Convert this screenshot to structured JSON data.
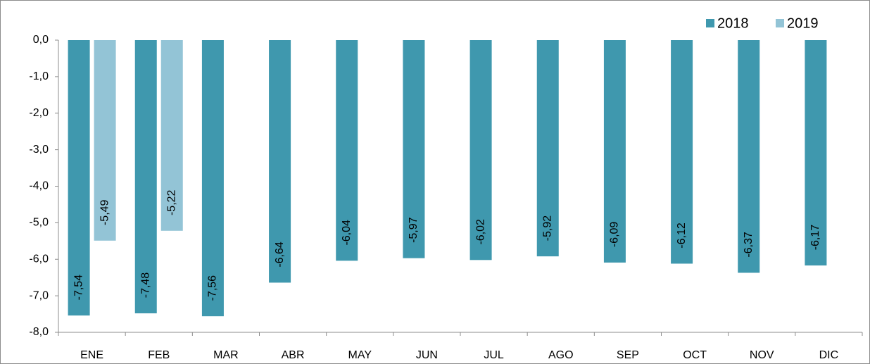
{
  "chart_data": {
    "type": "bar",
    "categories": [
      "ENE",
      "FEB",
      "MAR",
      "ABR",
      "MAY",
      "JUN",
      "JUL",
      "AGO",
      "SEP",
      "OCT",
      "NOV",
      "DIC"
    ],
    "series": [
      {
        "name": "2018",
        "color": "#3f98ae",
        "values": [
          -7.54,
          -7.48,
          -7.56,
          -6.64,
          -6.04,
          -5.97,
          -6.02,
          -5.92,
          -6.09,
          -6.12,
          -6.37,
          -6.17
        ],
        "value_labels": [
          "-7,54",
          "-7,48",
          "-7,56",
          "-6,64",
          "-6,04",
          "-5,97",
          "-6,02",
          "-5,92",
          "-6,09",
          "-6,12",
          "-6,37",
          "-6,17"
        ]
      },
      {
        "name": "2019",
        "color": "#93c4d6",
        "values": [
          -5.49,
          -5.22,
          null,
          null,
          null,
          null,
          null,
          null,
          null,
          null,
          null,
          null
        ],
        "value_labels": [
          "-5,49",
          "-5,22",
          null,
          null,
          null,
          null,
          null,
          null,
          null,
          null,
          null,
          null
        ]
      }
    ],
    "ylim": [
      -8,
      0
    ],
    "yticks": [
      {
        "value": 0,
        "label": "0,0"
      },
      {
        "value": -1,
        "label": "-1,0"
      },
      {
        "value": -2,
        "label": "-2,0"
      },
      {
        "value": -3,
        "label": "-3,0"
      },
      {
        "value": -4,
        "label": "-4,0"
      },
      {
        "value": -5,
        "label": "-5,0"
      },
      {
        "value": -6,
        "label": "-6,0"
      },
      {
        "value": -7,
        "label": "-7,0"
      },
      {
        "value": -8,
        "label": "-8,0"
      }
    ],
    "legend": "top-right"
  }
}
